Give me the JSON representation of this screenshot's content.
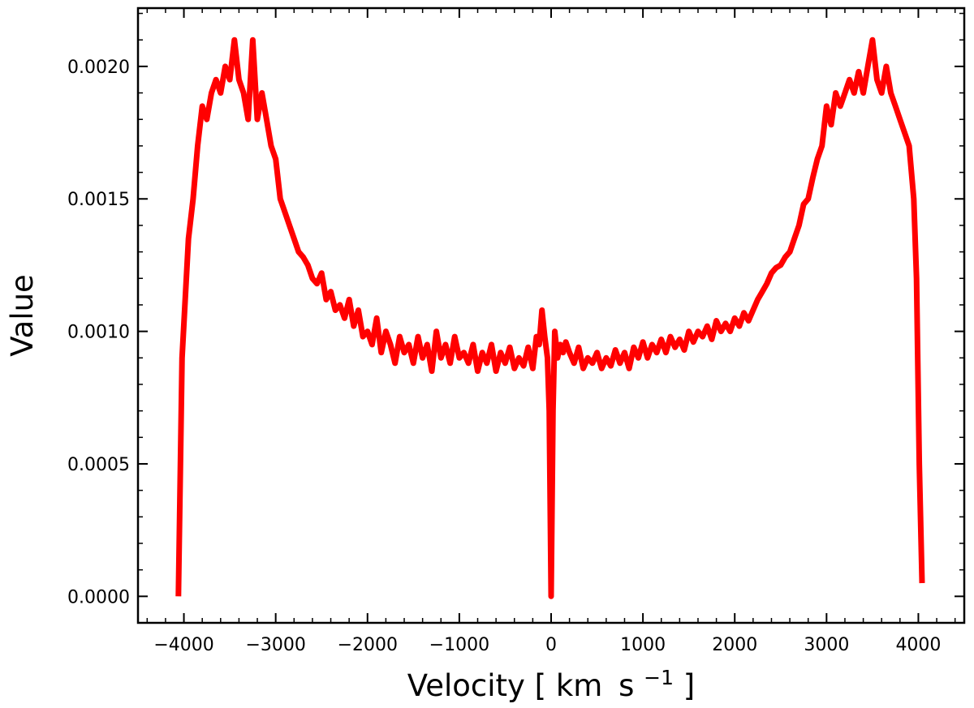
{
  "chart_data": {
    "type": "line",
    "xlabel": "Velocity",
    "xlabel_unit_open": "[",
    "xlabel_unit_km": "km",
    "xlabel_unit_s": "s",
    "xlabel_unit_exp": "−1",
    "xlabel_unit_close": "]",
    "ylabel": "Value",
    "xlim": [
      -4500,
      4500
    ],
    "ylim": [
      -0.0001,
      0.00222
    ],
    "xticks": [
      -4000,
      -3000,
      -2000,
      -1000,
      0,
      1000,
      2000,
      3000,
      4000
    ],
    "xtick_labels": [
      "−4000",
      "−3000",
      "−2000",
      "−1000",
      "0",
      "1000",
      "2000",
      "3000",
      "4000"
    ],
    "yticks": [
      0.0,
      0.0005,
      0.001,
      0.0015,
      0.002
    ],
    "ytick_labels": [
      "0.0000",
      "0.0005",
      "0.0010",
      "0.0015",
      "0.0020"
    ],
    "line_color": "#ff0000",
    "grid": false,
    "series": [
      {
        "x": [
          -4060,
          -4020,
          -3950,
          -3900,
          -3850,
          -3800,
          -3750,
          -3700,
          -3650,
          -3600,
          -3550,
          -3500,
          -3450,
          -3400,
          -3350,
          -3300,
          -3250,
          -3200,
          -3150,
          -3100,
          -3050,
          -3000,
          -2950,
          -2900,
          -2850,
          -2800,
          -2750,
          -2700,
          -2650,
          -2600,
          -2550,
          -2500,
          -2450,
          -2400,
          -2350,
          -2300,
          -2250,
          -2200,
          -2150,
          -2100,
          -2050,
          -2000,
          -1950,
          -1900,
          -1850,
          -1800,
          -1750,
          -1700,
          -1650,
          -1600,
          -1550,
          -1500,
          -1450,
          -1400,
          -1350,
          -1300,
          -1250,
          -1200,
          -1150,
          -1100,
          -1050,
          -1000,
          -950,
          -900,
          -850,
          -800,
          -750,
          -700,
          -650,
          -600,
          -550,
          -500,
          -450,
          -400,
          -350,
          -300,
          -250,
          -200,
          -160,
          -130,
          -100,
          -70,
          -40,
          -20,
          0,
          20,
          40,
          70,
          100,
          130,
          160,
          200,
          250,
          300,
          350,
          400,
          450,
          500,
          550,
          600,
          650,
          700,
          750,
          800,
          850,
          900,
          950,
          1000,
          1050,
          1100,
          1150,
          1200,
          1250,
          1300,
          1350,
          1400,
          1450,
          1500,
          1550,
          1600,
          1650,
          1700,
          1750,
          1800,
          1850,
          1900,
          1950,
          2000,
          2050,
          2100,
          2150,
          2200,
          2250,
          2300,
          2350,
          2400,
          2450,
          2500,
          2550,
          2600,
          2650,
          2700,
          2750,
          2800,
          2850,
          2900,
          2950,
          3000,
          3050,
          3100,
          3150,
          3200,
          3250,
          3300,
          3350,
          3400,
          3450,
          3500,
          3550,
          3600,
          3650,
          3700,
          3750,
          3800,
          3850,
          3900,
          3950,
          3980,
          4010,
          4040
        ],
        "y": [
          0.0,
          0.0009,
          0.00135,
          0.0015,
          0.0017,
          0.00185,
          0.0018,
          0.0019,
          0.00195,
          0.0019,
          0.002,
          0.00195,
          0.0021,
          0.00195,
          0.0019,
          0.0018,
          0.0021,
          0.0018,
          0.0019,
          0.0018,
          0.0017,
          0.00165,
          0.0015,
          0.00145,
          0.0014,
          0.00135,
          0.0013,
          0.00128,
          0.00125,
          0.0012,
          0.00118,
          0.00122,
          0.00112,
          0.00115,
          0.00108,
          0.0011,
          0.00105,
          0.00112,
          0.00102,
          0.00108,
          0.00098,
          0.001,
          0.00095,
          0.00105,
          0.00092,
          0.001,
          0.00095,
          0.00088,
          0.00098,
          0.00092,
          0.00095,
          0.00088,
          0.00098,
          0.0009,
          0.00095,
          0.00085,
          0.001,
          0.0009,
          0.00095,
          0.00088,
          0.00098,
          0.0009,
          0.00092,
          0.00088,
          0.00095,
          0.00085,
          0.00092,
          0.00088,
          0.00095,
          0.00085,
          0.00092,
          0.00088,
          0.00094,
          0.00086,
          0.0009,
          0.00087,
          0.00094,
          0.00086,
          0.00098,
          0.00095,
          0.00108,
          0.00098,
          0.0009,
          0.0007,
          0.0,
          0.0007,
          0.001,
          0.0009,
          0.00095,
          0.00092,
          0.00096,
          0.00092,
          0.00088,
          0.00094,
          0.00086,
          0.0009,
          0.00088,
          0.00092,
          0.00086,
          0.0009,
          0.00087,
          0.00093,
          0.00088,
          0.00092,
          0.00086,
          0.00094,
          0.0009,
          0.00096,
          0.0009,
          0.00095,
          0.00092,
          0.00097,
          0.00092,
          0.00098,
          0.00094,
          0.00097,
          0.00093,
          0.001,
          0.00096,
          0.001,
          0.00098,
          0.00102,
          0.00097,
          0.00104,
          0.001,
          0.00103,
          0.001,
          0.00105,
          0.00102,
          0.00107,
          0.00104,
          0.00108,
          0.00112,
          0.00115,
          0.00118,
          0.00122,
          0.00124,
          0.00125,
          0.00128,
          0.0013,
          0.00135,
          0.0014,
          0.00148,
          0.0015,
          0.00158,
          0.00165,
          0.0017,
          0.00185,
          0.00178,
          0.0019,
          0.00185,
          0.0019,
          0.00195,
          0.0019,
          0.00198,
          0.0019,
          0.002,
          0.0021,
          0.00195,
          0.0019,
          0.002,
          0.0019,
          0.00185,
          0.0018,
          0.00175,
          0.0017,
          0.0015,
          0.0012,
          0.0005,
          5e-05
        ]
      }
    ]
  }
}
